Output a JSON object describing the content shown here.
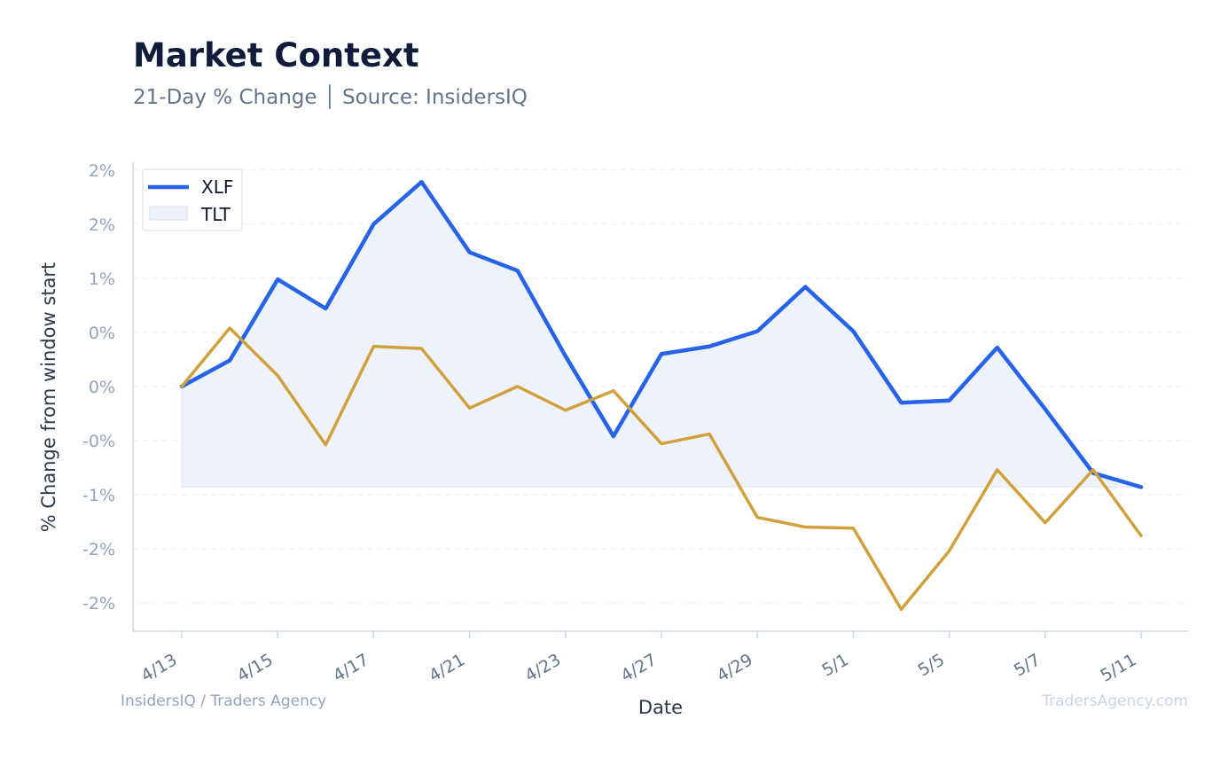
{
  "chart_data": {
    "type": "line",
    "title": "Market Context",
    "subtitle": "21-Day % Change │ Source: InsidersIQ",
    "xlabel": "Date",
    "ylabel": "% Change from window start",
    "x": [
      "4/13",
      "4/14",
      "4/15",
      "4/16",
      "4/17",
      "4/20",
      "4/21",
      "4/22",
      "4/23",
      "4/24",
      "4/27",
      "4/28",
      "4/29",
      "4/30",
      "5/1",
      "5/4",
      "5/5",
      "5/6",
      "5/7",
      "5/8",
      "5/11"
    ],
    "xtick_labels": [
      "4/13",
      "4/15",
      "4/17",
      "4/21",
      "4/23",
      "4/27",
      "4/29",
      "5/1",
      "5/5",
      "5/7",
      "5/11"
    ],
    "ytick_labels": [
      "2%",
      "2%",
      "1%",
      "0%",
      "0%",
      "-0%",
      "-1%",
      "-2%",
      "-2%"
    ],
    "ytick_values": [
      2.0,
      1.5,
      1.0,
      0.5,
      0.0,
      -0.5,
      -1.0,
      -1.5,
      -2.0
    ],
    "ylim": [
      -2.25,
      2.1
    ],
    "grid": true,
    "legend_position": "top-left",
    "series": [
      {
        "name": "XLF",
        "color": "#2563eb",
        "fill": true,
        "fill_color": "#eef2fb",
        "values": [
          0.0,
          0.24,
          0.99,
          0.72,
          1.5,
          1.89,
          1.24,
          1.07,
          0.28,
          -0.46,
          0.3,
          0.37,
          0.51,
          0.92,
          0.51,
          -0.15,
          -0.13,
          0.36,
          -0.21,
          -0.8,
          -0.93
        ]
      },
      {
        "name": "TLT",
        "color": "#d1a03a",
        "fill": false,
        "values": [
          0.0,
          0.54,
          0.1,
          -0.54,
          0.37,
          0.35,
          -0.2,
          0.0,
          -0.22,
          -0.04,
          -0.53,
          -0.44,
          -1.21,
          -1.3,
          -1.31,
          -2.06,
          -1.52,
          -0.77,
          -1.26,
          -0.77,
          -1.38
        ]
      }
    ]
  },
  "footer": {
    "left": "InsidersIQ / Traders Agency",
    "right": "TradersAgency.com"
  }
}
